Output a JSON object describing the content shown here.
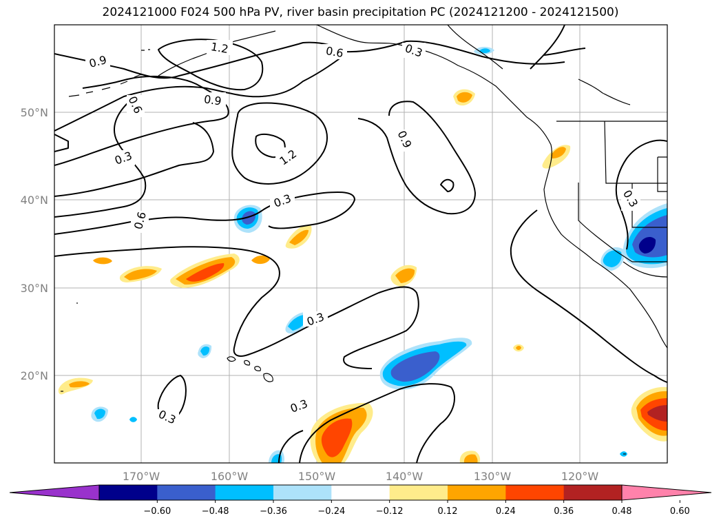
{
  "title": "2024121000 F024 500 hPa PV, river basin precipitation PC (2024121200 - 2024121500)",
  "lat_labels": [
    "50°N",
    "40°N",
    "30°N",
    "20°N"
  ],
  "lon_labels": [
    "170°W",
    "160°W",
    "150°W",
    "140°W",
    "130°W",
    "120°W"
  ],
  "contour_labels": [
    "0.9",
    "1.2",
    "0.6",
    "0.3",
    "0.6",
    "0.9",
    "0.3",
    "1.2",
    "0.9",
    "0.3",
    "0.6",
    "0.3",
    "0.3",
    "0.3",
    "0.3"
  ],
  "colorbar": {
    "ticks": [
      "−0.60",
      "−0.48",
      "−0.36",
      "−0.24",
      "−0.12",
      "0.12",
      "0.24",
      "0.36",
      "0.48",
      "0.60"
    ],
    "colors": [
      "#9932CC",
      "#00008B",
      "#3A5FCD",
      "#00BFFF",
      "#ADE2FA",
      "#FFFFFF",
      "#FFEC8B",
      "#FFA500",
      "#FF4500",
      "#B22222",
      "#FF82AB"
    ]
  }
}
